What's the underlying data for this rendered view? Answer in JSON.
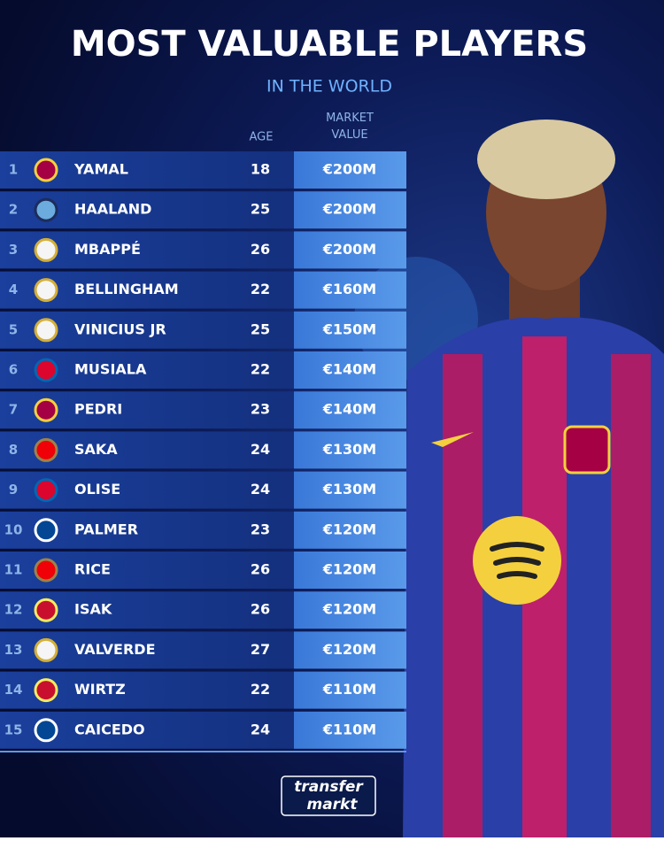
{
  "header": {
    "title": "MOST VALUABLE PLAYERS",
    "subtitle": "IN THE WORLD"
  },
  "table": {
    "columns": {
      "age": "AGE",
      "value": "MARKET VALUE"
    },
    "rows": [
      [
        1,
        "YAMAL",
        18,
        "€200M"
      ],
      [
        2,
        "HAALAND",
        25,
        "€200M"
      ],
      [
        3,
        "MBAPPÉ",
        26,
        "€200M"
      ],
      [
        4,
        "BELLINGHAM",
        22,
        "€160M"
      ],
      [
        5,
        "VINICIUS JR",
        25,
        "€150M"
      ],
      [
        6,
        "MUSIALA",
        22,
        "€140M"
      ],
      [
        7,
        "PEDRI",
        23,
        "€140M"
      ],
      [
        8,
        "SAKA",
        24,
        "€130M"
      ],
      [
        9,
        "OLISE",
        24,
        "€130M"
      ],
      [
        10,
        "PALMER",
        23,
        "€120M"
      ],
      [
        11,
        "RICE",
        26,
        "€120M"
      ],
      [
        12,
        "ISAK",
        26,
        "€120M"
      ],
      [
        13,
        "VALVERDE",
        27,
        "€120M"
      ],
      [
        14,
        "WIRTZ",
        22,
        "€110M"
      ],
      [
        15,
        "CAICEDO",
        24,
        "€110M"
      ]
    ]
  },
  "footer": {
    "logo_top": "transfer",
    "logo_bottom": "markt"
  }
}
